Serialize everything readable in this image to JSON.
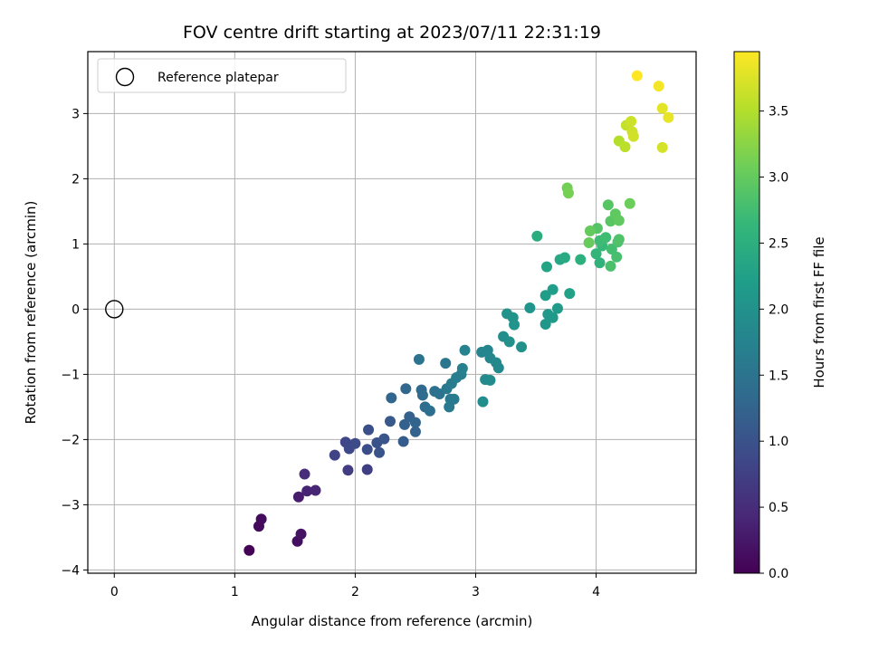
{
  "chart_data": {
    "type": "scatter",
    "title": "FOV centre drift starting at 2023/07/11 22:31:19",
    "xlabel": "Angular distance from reference (arcmin)",
    "ylabel": "Rotation from reference (arcmin)",
    "xlim": [
      -0.22,
      4.83
    ],
    "ylim": [
      -4.05,
      3.95
    ],
    "xticks": [
      0,
      1,
      2,
      3,
      4
    ],
    "yticks": [
      -4,
      -3,
      -2,
      -1,
      0,
      1,
      2,
      3
    ],
    "grid": true,
    "legend": {
      "position": "upper-left",
      "entries": [
        "Reference platepar"
      ]
    },
    "colorbar": {
      "label": "Hours from first FF file",
      "range": [
        0.0,
        3.95
      ],
      "ticks": [
        "0.0",
        "0.5",
        "1.0",
        "1.5",
        "2.0",
        "2.5",
        "3.0",
        "3.5"
      ],
      "colormap": "viridis"
    },
    "reference_point": {
      "x": 0,
      "y": 0,
      "label": "Reference platepar"
    },
    "points": [
      {
        "x": 1.12,
        "y": -3.7,
        "c": 0.02
      },
      {
        "x": 1.2,
        "y": -3.33,
        "c": 0.1
      },
      {
        "x": 1.22,
        "y": -3.22,
        "c": 0.12
      },
      {
        "x": 1.52,
        "y": -3.56,
        "c": 0.16
      },
      {
        "x": 1.55,
        "y": -3.45,
        "c": 0.2
      },
      {
        "x": 1.53,
        "y": -2.88,
        "c": 0.3
      },
      {
        "x": 1.6,
        "y": -2.79,
        "c": 0.38
      },
      {
        "x": 1.67,
        "y": -2.78,
        "c": 0.42
      },
      {
        "x": 1.58,
        "y": -2.53,
        "c": 0.5
      },
      {
        "x": 1.94,
        "y": -2.47,
        "c": 0.7
      },
      {
        "x": 2.1,
        "y": -2.46,
        "c": 0.75
      },
      {
        "x": 1.83,
        "y": -2.24,
        "c": 0.8
      },
      {
        "x": 1.92,
        "y": -2.04,
        "c": 0.85
      },
      {
        "x": 1.95,
        "y": -2.14,
        "c": 0.88
      },
      {
        "x": 2.0,
        "y": -2.06,
        "c": 0.9
      },
      {
        "x": 2.1,
        "y": -2.15,
        "c": 0.95
      },
      {
        "x": 2.11,
        "y": -1.85,
        "c": 0.98
      },
      {
        "x": 2.18,
        "y": -2.05,
        "c": 1.0
      },
      {
        "x": 2.2,
        "y": -2.2,
        "c": 1.02
      },
      {
        "x": 2.24,
        "y": -1.99,
        "c": 1.05
      },
      {
        "x": 2.29,
        "y": -1.72,
        "c": 1.1
      },
      {
        "x": 2.4,
        "y": -2.03,
        "c": 1.15
      },
      {
        "x": 2.41,
        "y": -1.77,
        "c": 1.2
      },
      {
        "x": 2.45,
        "y": -1.65,
        "c": 1.22
      },
      {
        "x": 2.5,
        "y": -1.88,
        "c": 1.25
      },
      {
        "x": 2.5,
        "y": -1.74,
        "c": 1.28
      },
      {
        "x": 2.3,
        "y": -1.36,
        "c": 1.3
      },
      {
        "x": 2.42,
        "y": -1.22,
        "c": 1.32
      },
      {
        "x": 2.55,
        "y": -1.24,
        "c": 1.35
      },
      {
        "x": 2.56,
        "y": -1.32,
        "c": 1.38
      },
      {
        "x": 2.58,
        "y": -1.5,
        "c": 1.4
      },
      {
        "x": 2.62,
        "y": -1.56,
        "c": 1.42
      },
      {
        "x": 2.66,
        "y": -1.26,
        "c": 1.45
      },
      {
        "x": 2.7,
        "y": -1.3,
        "c": 1.48
      },
      {
        "x": 2.53,
        "y": -0.77,
        "c": 1.5
      },
      {
        "x": 2.75,
        "y": -0.83,
        "c": 1.55
      },
      {
        "x": 2.76,
        "y": -1.22,
        "c": 1.58
      },
      {
        "x": 2.79,
        "y": -1.38,
        "c": 1.6
      },
      {
        "x": 2.82,
        "y": -1.38,
        "c": 1.62
      },
      {
        "x": 2.78,
        "y": -1.5,
        "c": 1.62
      },
      {
        "x": 2.8,
        "y": -1.14,
        "c": 1.65
      },
      {
        "x": 2.84,
        "y": -1.05,
        "c": 1.68
      },
      {
        "x": 2.88,
        "y": -1.0,
        "c": 1.7
      },
      {
        "x": 2.89,
        "y": -0.91,
        "c": 1.72
      },
      {
        "x": 2.91,
        "y": -0.63,
        "c": 1.75
      },
      {
        "x": 3.05,
        "y": -0.66,
        "c": 1.78
      },
      {
        "x": 3.1,
        "y": -0.63,
        "c": 1.8
      },
      {
        "x": 3.12,
        "y": -0.75,
        "c": 1.82
      },
      {
        "x": 3.17,
        "y": -0.82,
        "c": 1.85
      },
      {
        "x": 3.19,
        "y": -0.9,
        "c": 1.87
      },
      {
        "x": 3.08,
        "y": -1.08,
        "c": 1.88
      },
      {
        "x": 3.12,
        "y": -1.09,
        "c": 1.9
      },
      {
        "x": 3.06,
        "y": -1.42,
        "c": 1.92
      },
      {
        "x": 3.23,
        "y": -0.42,
        "c": 1.95
      },
      {
        "x": 3.28,
        "y": -0.5,
        "c": 1.97
      },
      {
        "x": 3.38,
        "y": -0.58,
        "c": 1.98
      },
      {
        "x": 3.26,
        "y": -0.07,
        "c": 2.0
      },
      {
        "x": 3.31,
        "y": -0.13,
        "c": 2.02
      },
      {
        "x": 3.32,
        "y": -0.24,
        "c": 2.04
      },
      {
        "x": 3.45,
        "y": 0.02,
        "c": 2.05
      },
      {
        "x": 3.58,
        "y": -0.23,
        "c": 2.08
      },
      {
        "x": 3.6,
        "y": -0.08,
        "c": 2.1
      },
      {
        "x": 3.64,
        "y": -0.13,
        "c": 2.12
      },
      {
        "x": 3.68,
        "y": 0.01,
        "c": 2.15
      },
      {
        "x": 3.58,
        "y": 0.21,
        "c": 2.18
      },
      {
        "x": 3.64,
        "y": 0.3,
        "c": 2.2
      },
      {
        "x": 3.78,
        "y": 0.24,
        "c": 2.25
      },
      {
        "x": 3.59,
        "y": 0.65,
        "c": 2.3
      },
      {
        "x": 3.7,
        "y": 0.76,
        "c": 2.35
      },
      {
        "x": 3.74,
        "y": 0.79,
        "c": 2.4
      },
      {
        "x": 3.51,
        "y": 1.12,
        "c": 2.45
      },
      {
        "x": 3.87,
        "y": 0.76,
        "c": 2.5
      },
      {
        "x": 4.03,
        "y": 0.71,
        "c": 2.55
      },
      {
        "x": 4.0,
        "y": 0.85,
        "c": 2.6
      },
      {
        "x": 4.05,
        "y": 0.97,
        "c": 2.65
      },
      {
        "x": 4.03,
        "y": 1.05,
        "c": 2.7
      },
      {
        "x": 4.08,
        "y": 1.1,
        "c": 2.72
      },
      {
        "x": 4.13,
        "y": 0.92,
        "c": 2.75
      },
      {
        "x": 4.17,
        "y": 0.8,
        "c": 2.78
      },
      {
        "x": 4.12,
        "y": 0.66,
        "c": 2.8
      },
      {
        "x": 4.18,
        "y": 1.03,
        "c": 2.82
      },
      {
        "x": 4.19,
        "y": 1.07,
        "c": 2.85
      },
      {
        "x": 4.01,
        "y": 1.24,
        "c": 2.88
      },
      {
        "x": 4.1,
        "y": 1.6,
        "c": 2.9
      },
      {
        "x": 4.12,
        "y": 1.35,
        "c": 2.92
      },
      {
        "x": 4.16,
        "y": 1.46,
        "c": 2.95
      },
      {
        "x": 4.19,
        "y": 1.36,
        "c": 2.97
      },
      {
        "x": 3.95,
        "y": 1.2,
        "c": 3.0
      },
      {
        "x": 3.94,
        "y": 1.02,
        "c": 3.02
      },
      {
        "x": 4.28,
        "y": 1.62,
        "c": 3.05
      },
      {
        "x": 3.76,
        "y": 1.86,
        "c": 3.1
      },
      {
        "x": 3.77,
        "y": 1.78,
        "c": 3.12
      },
      {
        "x": 4.19,
        "y": 2.58,
        "c": 3.5
      },
      {
        "x": 4.24,
        "y": 2.49,
        "c": 3.55
      },
      {
        "x": 4.25,
        "y": 2.82,
        "c": 3.6
      },
      {
        "x": 4.29,
        "y": 2.88,
        "c": 3.65
      },
      {
        "x": 4.3,
        "y": 2.72,
        "c": 3.65
      },
      {
        "x": 4.31,
        "y": 2.65,
        "c": 3.68
      },
      {
        "x": 4.55,
        "y": 2.48,
        "c": 3.7
      },
      {
        "x": 4.55,
        "y": 3.08,
        "c": 3.8
      },
      {
        "x": 4.6,
        "y": 2.94,
        "c": 3.82
      },
      {
        "x": 4.52,
        "y": 3.42,
        "c": 3.88
      },
      {
        "x": 4.34,
        "y": 3.58,
        "c": 3.95
      }
    ]
  }
}
